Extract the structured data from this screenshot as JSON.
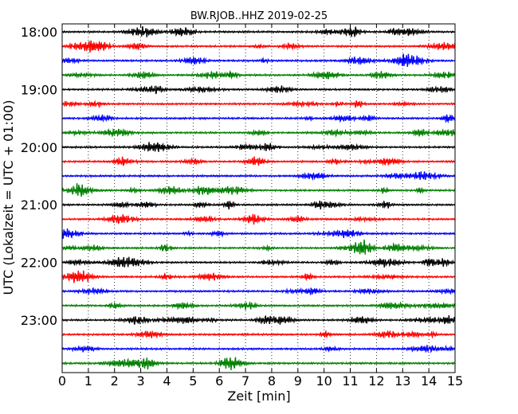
{
  "chart_data": {
    "type": "line",
    "title": "BW.RJOB..HHZ 2019-02-25",
    "xlabel": "Zeit  [min]",
    "ylabel": "UTC (Lokalzeit = UTC + 01:00)",
    "xlim": [
      0,
      15
    ],
    "x_ticks": [
      0,
      1,
      2,
      3,
      4,
      5,
      6,
      7,
      8,
      9,
      10,
      11,
      12,
      13,
      14,
      15
    ],
    "y_tick_labels": [
      "18:00",
      "19:00",
      "20:00",
      "21:00",
      "22:00",
      "23:00"
    ],
    "rows_per_tick": 4,
    "row_count": 24,
    "row_start_utc": "18:00",
    "row_interval_min": 15,
    "grid": "vertical dotted lines at each minute",
    "colors": [
      "#000000",
      "#ff0000",
      "#0000ff",
      "#008000"
    ]
  }
}
